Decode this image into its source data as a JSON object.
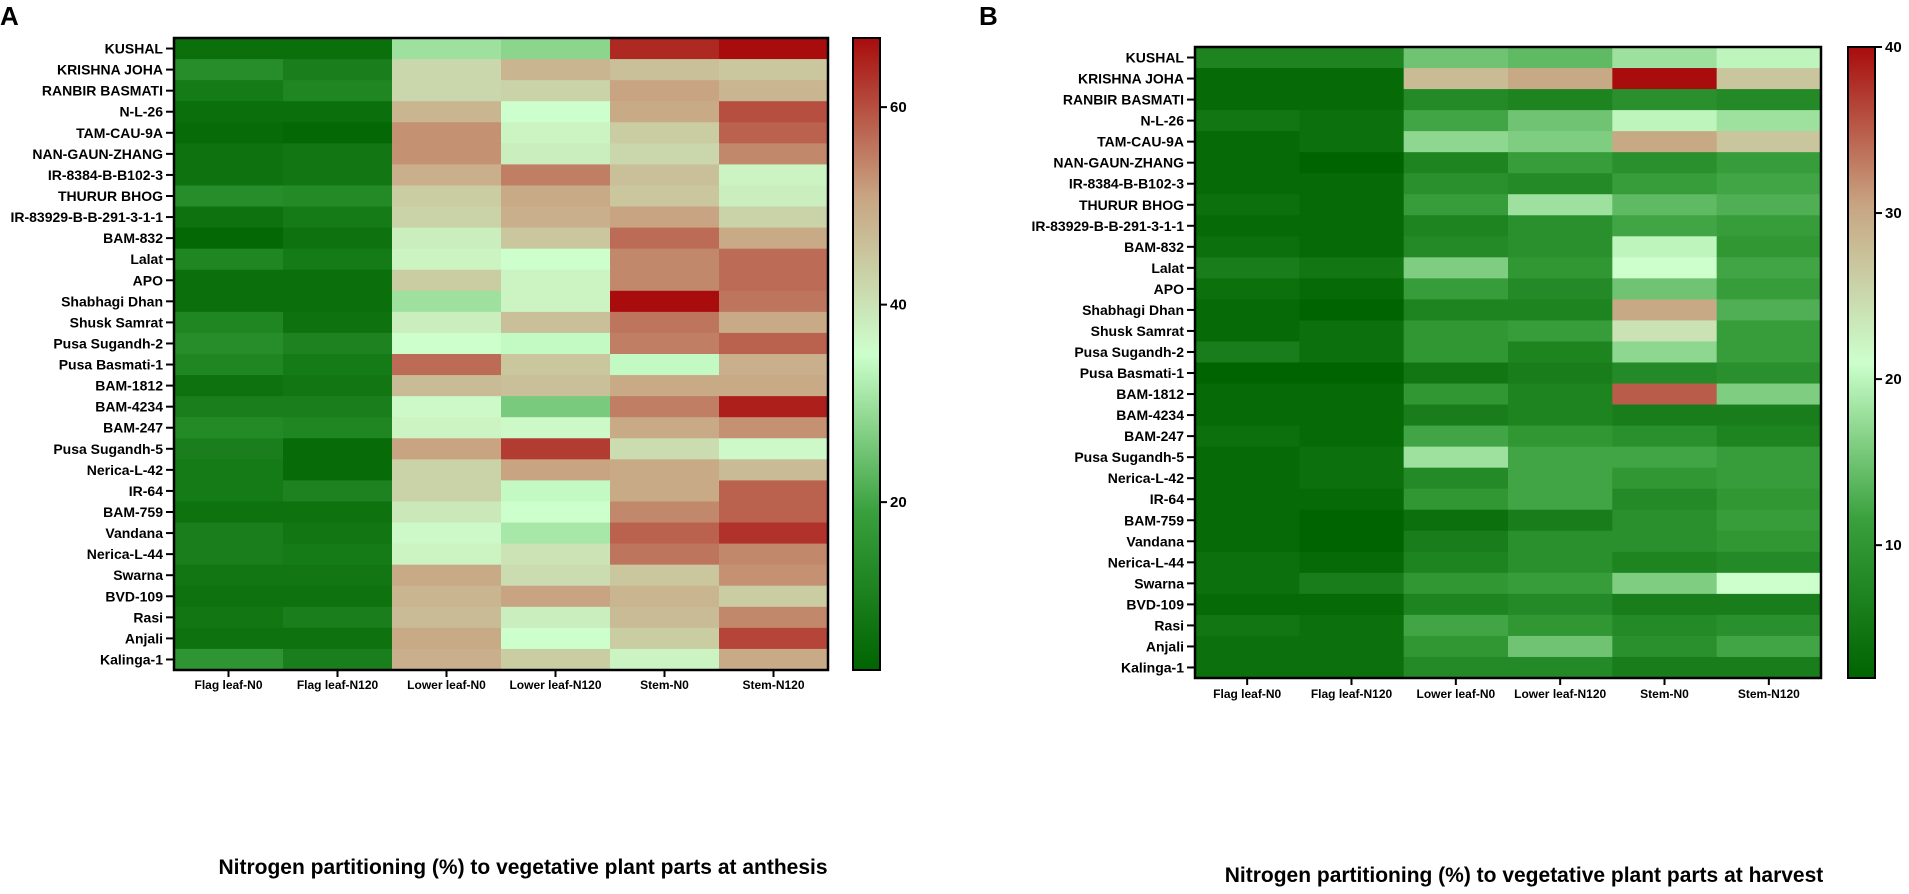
{
  "chart_data": [
    {
      "type": "heatmap",
      "panel_label": "A",
      "title": "",
      "xlabel": "Nitrogen partitioning (%) to vegetative plant parts at anthesis",
      "ylabel": "",
      "columns": [
        "Flag leaf-N0",
        "Flag leaf-N120",
        "Lower leaf-N0",
        "Lower leaf-N120",
        "Stem-N0",
        "Stem-N120"
      ],
      "rows": [
        "KUSHAL",
        "KRISHNA JOHA",
        "RANBIR BASMATI",
        "N-L-26",
        "TAM-CAU-9A",
        "NAN-GAUN-ZHANG",
        "IR-8384-B-B102-3",
        "THURUR BHOG",
        "IR-83929-B-B-291-3-1-1",
        "BAM-832",
        "Lalat",
        "APO",
        "Shabhagi Dhan",
        "Shusk Samrat",
        "Pusa Sugandh-2",
        "Pusa Basmati-1",
        "BAM-1812",
        "BAM-4234",
        "BAM-247",
        "Pusa Sugandh-5",
        "Nerica-L-42",
        "IR-64",
        "BAM-759",
        "Vandana",
        "Nerica-L-44",
        "Swarna",
        "BVD-109",
        "Rasi",
        "Anjali",
        "Kalinga-1"
      ],
      "values": [
        [
          6,
          6,
          30,
          28,
          64,
          67
        ],
        [
          14,
          10,
          42,
          48,
          46,
          45
        ],
        [
          9,
          12,
          42,
          43,
          51,
          48
        ],
        [
          6,
          6,
          48,
          35,
          50,
          60
        ],
        [
          5,
          4,
          53,
          37,
          44,
          58
        ],
        [
          7,
          8,
          53,
          38,
          42,
          54
        ],
        [
          7,
          8,
          49,
          55,
          46,
          37
        ],
        [
          14,
          13,
          44,
          50,
          45,
          38
        ],
        [
          7,
          9,
          43,
          49,
          51,
          43
        ],
        [
          4,
          7,
          38,
          45,
          57,
          50
        ],
        [
          12,
          9,
          37,
          35,
          54,
          57
        ],
        [
          6,
          6,
          44,
          37,
          54,
          57
        ],
        [
          6,
          6,
          30,
          37,
          68,
          56
        ],
        [
          12,
          7,
          38,
          46,
          56,
          50
        ],
        [
          14,
          11,
          35,
          34,
          55,
          58
        ],
        [
          12,
          9,
          57,
          45,
          34,
          49
        ],
        [
          7,
          8,
          47,
          46,
          50,
          50
        ],
        [
          10,
          10,
          36,
          26,
          55,
          65
        ],
        [
          13,
          12,
          37,
          36,
          50,
          53
        ],
        [
          10,
          5,
          51,
          62,
          41,
          36
        ],
        [
          9,
          5,
          43,
          51,
          50,
          47
        ],
        [
          9,
          11,
          43,
          34,
          50,
          58
        ],
        [
          7,
          7,
          39,
          35,
          54,
          58
        ],
        [
          10,
          8,
          36,
          31,
          58,
          63
        ],
        [
          10,
          9,
          37,
          40,
          56,
          54
        ],
        [
          8,
          8,
          50,
          41,
          45,
          53
        ],
        [
          7,
          7,
          48,
          51,
          48,
          44
        ],
        [
          8,
          10,
          47,
          38,
          47,
          54
        ],
        [
          7,
          7,
          50,
          35,
          44,
          61
        ],
        [
          16,
          10,
          49,
          44,
          37,
          50
        ]
      ],
      "colorbar": {
        "min": 3,
        "max": 67,
        "ticks": [
          20,
          40,
          60
        ],
        "colors": [
          "#006400",
          "#39a03d",
          "#ccffcc",
          "#c8a482",
          "#a80c0c"
        ]
      }
    },
    {
      "type": "heatmap",
      "panel_label": "B",
      "title": "",
      "xlabel": "Nitrogen partitioning (%) to vegetative plant parts at harvest",
      "ylabel": "",
      "columns": [
        "Flag leaf-N0",
        "Flag leaf-N120",
        "Lower leaf-N0",
        "Lower leaf-N120",
        "Stem-N0",
        "Stem-N120"
      ],
      "rows": [
        "KUSHAL",
        "KRISHNA JOHA",
        "RANBIR BASMATI",
        "N-L-26",
        "TAM-CAU-9A",
        "NAN-GAUN-ZHANG",
        "IR-8384-B-B102-3",
        "THURUR BHOG",
        "IR-83929-B-B-291-3-1-1",
        "BAM-832",
        "Lalat",
        "APO",
        "Shabhagi Dhan",
        "Shusk Samrat",
        "Pusa Sugandh-2",
        "Pusa Basmati-1",
        "BAM-1812",
        "BAM-4234",
        "BAM-247",
        "Pusa Sugandh-5",
        "Nerica-L-42",
        "IR-64",
        "BAM-759",
        "Vandana",
        "Nerica-L-44",
        "Swarna",
        "BVD-109",
        "Rasi",
        "Anjali",
        "Kalinga-1"
      ],
      "values": [
        [
          7,
          7,
          15,
          14,
          18,
          20
        ],
        [
          3,
          3,
          28,
          30,
          40,
          27
        ],
        [
          3,
          3,
          8,
          7,
          9,
          8
        ],
        [
          5,
          4,
          12,
          15,
          20,
          18
        ],
        [
          3,
          4,
          17,
          16,
          30,
          27
        ],
        [
          3,
          2,
          7,
          11,
          9,
          11
        ],
        [
          3,
          3,
          9,
          8,
          11,
          12
        ],
        [
          4,
          3,
          11,
          18,
          14,
          13
        ],
        [
          3,
          3,
          7,
          9,
          12,
          11
        ],
        [
          4,
          3,
          8,
          9,
          20,
          10
        ],
        [
          6,
          5,
          16,
          10,
          21,
          12
        ],
        [
          4,
          3,
          11,
          8,
          15,
          11
        ],
        [
          3,
          2,
          7,
          7,
          30,
          13
        ],
        [
          3,
          4,
          10,
          11,
          24,
          11
        ],
        [
          6,
          4,
          10,
          7,
          17,
          11
        ],
        [
          2,
          2,
          5,
          6,
          8,
          9
        ],
        [
          3,
          3,
          10,
          7,
          35,
          16
        ],
        [
          3,
          3,
          6,
          7,
          6,
          6
        ],
        [
          4,
          3,
          12,
          10,
          9,
          7
        ],
        [
          3,
          4,
          18,
          12,
          12,
          11
        ],
        [
          3,
          4,
          8,
          12,
          10,
          11
        ],
        [
          3,
          3,
          10,
          12,
          8,
          10
        ],
        [
          3,
          2,
          4,
          6,
          9,
          11
        ],
        [
          3,
          2,
          6,
          9,
          9,
          10
        ],
        [
          4,
          3,
          7,
          9,
          7,
          8
        ],
        [
          4,
          6,
          10,
          11,
          16,
          21
        ],
        [
          3,
          3,
          7,
          8,
          6,
          6
        ],
        [
          5,
          4,
          12,
          10,
          8,
          9
        ],
        [
          4,
          4,
          10,
          15,
          9,
          12
        ],
        [
          4,
          4,
          8,
          8,
          6,
          6
        ]
      ],
      "colorbar": {
        "min": 2,
        "max": 40,
        "ticks": [
          10,
          20,
          30,
          40
        ],
        "colors": [
          "#006400",
          "#39a03d",
          "#ccffcc",
          "#c8a482",
          "#a80c0c"
        ]
      }
    }
  ]
}
